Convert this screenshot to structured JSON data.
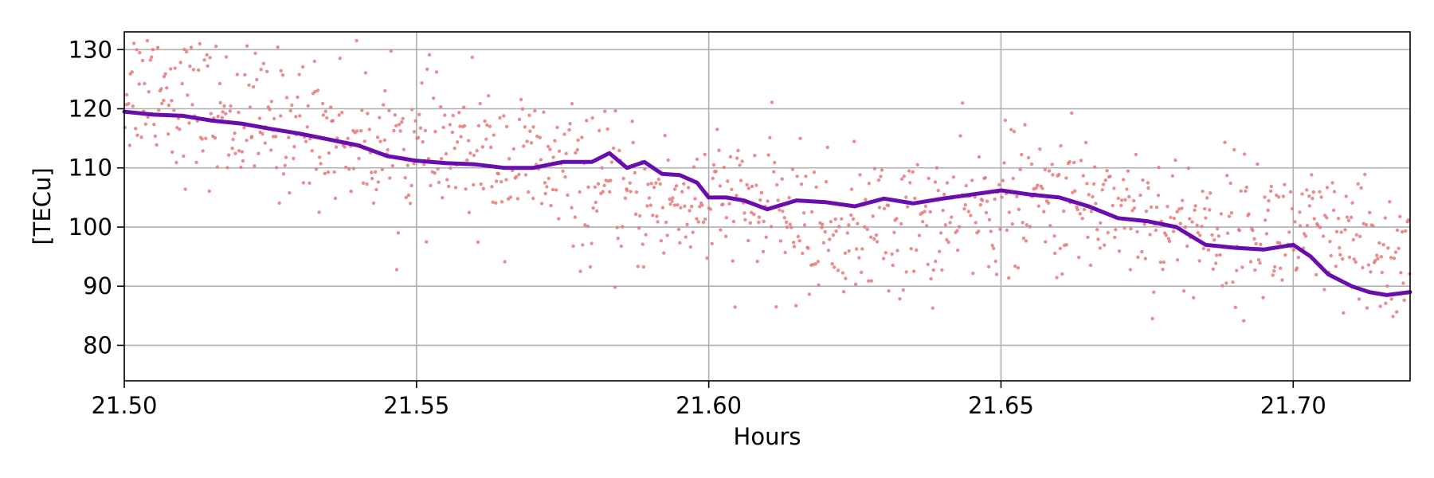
{
  "chart_data": {
    "type": "scatter",
    "xlabel": "Hours",
    "ylabel": "[TECu]",
    "xlim": [
      21.5,
      21.72
    ],
    "ylim": [
      74,
      133
    ],
    "grid": true,
    "x_ticks": [
      21.5,
      21.55,
      21.6,
      21.65,
      21.7
    ],
    "x_tick_labels": [
      "21.50",
      "21.55",
      "21.60",
      "21.65",
      "21.70"
    ],
    "y_ticks": [
      80,
      90,
      100,
      110,
      120,
      130
    ],
    "y_tick_labels": [
      "80",
      "90",
      "100",
      "110",
      "120",
      "130"
    ],
    "colors": {
      "scatter": "#e8787a",
      "line": "#6a0dad"
    },
    "series": [
      {
        "kind": "scatter",
        "marker_density_per_hour": 5000,
        "noise_sd": 6,
        "x": [
          21.5,
          21.505,
          21.51,
          21.52,
          21.53,
          21.54,
          21.545,
          21.55,
          21.56,
          21.57,
          21.58,
          21.59,
          21.6,
          21.61,
          21.62,
          21.63,
          21.64,
          21.65,
          21.66,
          21.67,
          21.68,
          21.69,
          21.7,
          21.71,
          21.72
        ],
        "y": [
          123,
          125,
          121,
          118,
          117,
          115,
          114,
          113,
          112,
          111,
          106,
          104,
          104,
          103,
          99,
          100,
          101,
          104,
          104,
          104,
          100,
          100,
          99,
          96,
          94
        ]
      },
      {
        "kind": "line",
        "x": [
          21.5,
          21.505,
          21.51,
          21.515,
          21.52,
          21.525,
          21.53,
          21.535,
          21.54,
          21.545,
          21.55,
          21.555,
          21.56,
          21.565,
          21.57,
          21.575,
          21.58,
          21.583,
          21.586,
          21.589,
          21.592,
          21.595,
          21.598,
          21.6,
          21.603,
          21.606,
          21.61,
          21.615,
          21.62,
          21.625,
          21.63,
          21.635,
          21.64,
          21.645,
          21.65,
          21.655,
          21.66,
          21.665,
          21.67,
          21.675,
          21.68,
          21.685,
          21.69,
          21.695,
          21.7,
          21.703,
          21.706,
          21.71,
          21.713,
          21.716,
          21.72
        ],
        "y": [
          119.5,
          119.0,
          118.8,
          118.0,
          117.5,
          116.6,
          115.8,
          114.8,
          113.8,
          112.0,
          111.2,
          110.8,
          110.6,
          110.0,
          110.0,
          111.0,
          111.0,
          112.5,
          110.0,
          111.0,
          109.0,
          108.8,
          107.5,
          105.0,
          105.0,
          104.5,
          103.0,
          104.5,
          104.2,
          103.5,
          104.8,
          104.0,
          104.8,
          105.5,
          106.2,
          105.5,
          105.0,
          103.5,
          101.5,
          101.0,
          100.0,
          97.0,
          96.5,
          96.2,
          97.0,
          95.0,
          92.0,
          90.0,
          89.0,
          88.5,
          89.0
        ]
      }
    ]
  }
}
